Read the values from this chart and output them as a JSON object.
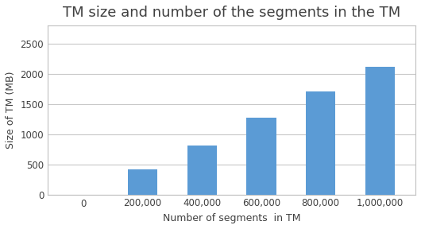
{
  "title": "TM size and number of the segments in the TM",
  "xlabel": "Number of segments  in TM",
  "ylabel": "Size of TM (MB)",
  "categories": [
    "0",
    "200,000",
    "400,000",
    "600,000",
    "800,000",
    "1,000,000"
  ],
  "y_values": [
    0,
    420,
    810,
    1270,
    1710,
    2120
  ],
  "bar_color": "#5B9BD5",
  "bar_width": 0.5,
  "ylim": [
    0,
    2800
  ],
  "yticks": [
    0,
    500,
    1000,
    1500,
    2000,
    2500
  ],
  "title_fontsize": 13,
  "label_fontsize": 9,
  "tick_fontsize": 8.5,
  "background_color": "#ffffff",
  "grid_color": "#c8c8c8",
  "border_color": "#c0c0c0"
}
